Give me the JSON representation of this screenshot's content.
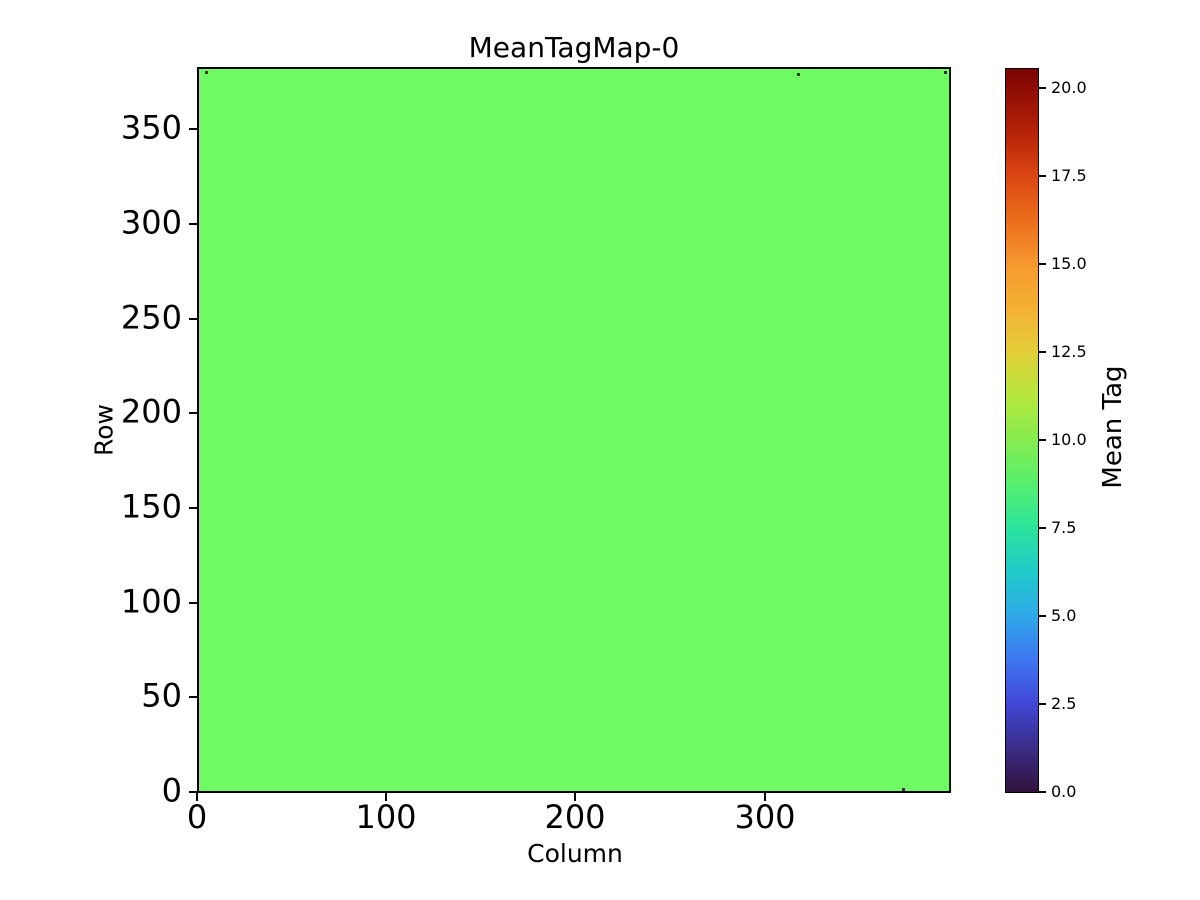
{
  "chart_data": {
    "type": "heatmap",
    "title": "MeanTagMap-0",
    "xlabel": "Column",
    "ylabel": "Row",
    "x_ticks": [
      "0",
      "100",
      "200",
      "300"
    ],
    "y_ticks": [
      "0",
      "50",
      "100",
      "150",
      "200",
      "250",
      "300",
      "350"
    ],
    "x_range": [
      0,
      398
    ],
    "y_range": [
      0,
      384
    ],
    "grid": false,
    "uniform_value": 9,
    "fill_color": "#6ffb63",
    "colorbar": {
      "label": "Mean Tag",
      "ticks": [
        "0.0",
        "2.5",
        "5.0",
        "7.5",
        "10.0",
        "12.5",
        "15.0",
        "17.5",
        "20.0"
      ],
      "vmin": 0.0,
      "vmax": 20.6,
      "colormap": "turbo",
      "gradient_stops": [
        {
          "pos": 0,
          "color": "#30123b"
        },
        {
          "pos": 6,
          "color": "#3a2c85"
        },
        {
          "pos": 12.2,
          "color": "#4148d7"
        },
        {
          "pos": 18.2,
          "color": "#3e75f0"
        },
        {
          "pos": 24.3,
          "color": "#2fa8e8"
        },
        {
          "pos": 30.4,
          "color": "#20cbca"
        },
        {
          "pos": 36.5,
          "color": "#2be49b"
        },
        {
          "pos": 42.5,
          "color": "#55ef6f"
        },
        {
          "pos": 48.6,
          "color": "#86ec50"
        },
        {
          "pos": 54.7,
          "color": "#b5e83c"
        },
        {
          "pos": 60.8,
          "color": "#e2ce39"
        },
        {
          "pos": 66.8,
          "color": "#f3b133"
        },
        {
          "pos": 72.9,
          "color": "#f6992f"
        },
        {
          "pos": 79,
          "color": "#ec6e1c"
        },
        {
          "pos": 85.1,
          "color": "#db4714"
        },
        {
          "pos": 91.2,
          "color": "#b52207"
        },
        {
          "pos": 97.2,
          "color": "#8e0d03"
        },
        {
          "pos": 100,
          "color": "#7a0403"
        }
      ]
    },
    "outlier_pixels": [
      {
        "col": 4,
        "row": 382,
        "color": "#7a2008"
      },
      {
        "col": 318,
        "row": 381,
        "color": "#333333"
      },
      {
        "col": 396,
        "row": 382,
        "color": "#333333"
      },
      {
        "col": 374,
        "row": 1,
        "color": "#333333"
      }
    ]
  }
}
